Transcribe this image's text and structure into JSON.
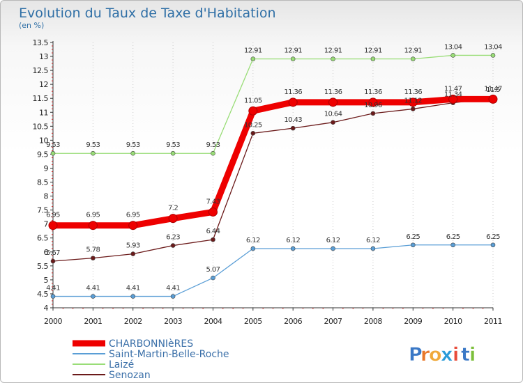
{
  "chart_data": {
    "type": "line",
    "title": "Evolution du Taux de Taxe d'Habitation",
    "subtitle": "(en %)",
    "xlabel": "",
    "ylabel": "",
    "x": [
      "2000",
      "2001",
      "2002",
      "2003",
      "2004",
      "2005",
      "2006",
      "2007",
      "2008",
      "2009",
      "2010",
      "2011"
    ],
    "ylim": [
      4,
      13.5
    ],
    "yticks": [
      "4",
      "4.5",
      "5",
      "5.5",
      "6",
      "6.5",
      "7",
      "7.5",
      "8",
      "8.5",
      "9",
      "9.5",
      "10",
      "10.5",
      "11",
      "11.5",
      "12",
      "12.5",
      "13",
      "13.5"
    ],
    "grid": "vertical dotted",
    "legend_position": "bottom-left",
    "series": [
      {
        "name": "Senozan",
        "color": "#6b1a1a",
        "values": [
          5.67,
          5.78,
          5.93,
          6.23,
          6.44,
          10.25,
          10.43,
          10.64,
          10.96,
          11.12,
          11.34,
          11.5
        ],
        "labels": [
          "5.67",
          "5.78",
          "5.93",
          "6.23",
          "6.44",
          "10.25",
          "10.43",
          "10.64",
          "10.96",
          "11.12",
          "11.34",
          "11.5"
        ]
      },
      {
        "name": "Saint-Martin-Belle-Roche",
        "color": "#5a9ed6",
        "values": [
          4.41,
          4.41,
          4.41,
          4.41,
          5.07,
          6.12,
          6.12,
          6.12,
          6.12,
          6.25,
          6.25,
          6.25
        ],
        "labels": [
          "4.41",
          "4.41",
          "4.41",
          "4.41",
          "5.07",
          "6.12",
          "6.12",
          "6.12",
          "6.12",
          "6.25",
          "6.25",
          "6.25"
        ]
      },
      {
        "name": "Laizé",
        "color": "#99dd77",
        "values": [
          9.53,
          9.53,
          9.53,
          9.53,
          9.53,
          12.91,
          12.91,
          12.91,
          12.91,
          12.91,
          13.04,
          13.04
        ],
        "labels": [
          "9.53",
          "9.53",
          "9.53",
          "9.53",
          "9.53",
          "12.91",
          "12.91",
          "12.91",
          "12.91",
          "12.91",
          "13.04",
          "13.04"
        ]
      },
      {
        "name": "CHARBONNIèRES",
        "color": "#ee0000",
        "values": [
          6.95,
          6.95,
          6.95,
          7.2,
          7.43,
          11.05,
          11.36,
          11.36,
          11.36,
          11.36,
          11.47,
          11.47
        ],
        "labels": [
          "6.95",
          "6.95",
          "6.95",
          "7.2",
          "7.43",
          "11.05",
          "11.36",
          "11.36",
          "11.36",
          "11.36",
          "11.47",
          "11.47"
        ]
      }
    ],
    "legend": [
      {
        "name": "CHARBONNIèRES",
        "color": "#ee0000"
      },
      {
        "name": "Saint-Martin-Belle-Roche",
        "color": "#5a9ed6"
      },
      {
        "name": "Laizé",
        "color": "#99dd77"
      },
      {
        "name": "Senozan",
        "color": "#6b1a1a"
      }
    ]
  },
  "brand": {
    "letters": [
      "P",
      "r",
      "o",
      "x",
      "i",
      "t",
      "i"
    ],
    "colors": [
      "#3a78c6",
      "#e8772a",
      "#f0a93a",
      "#2a9bd8",
      "#e84b3a",
      "#3a78c6",
      "#7cbf3a"
    ]
  }
}
